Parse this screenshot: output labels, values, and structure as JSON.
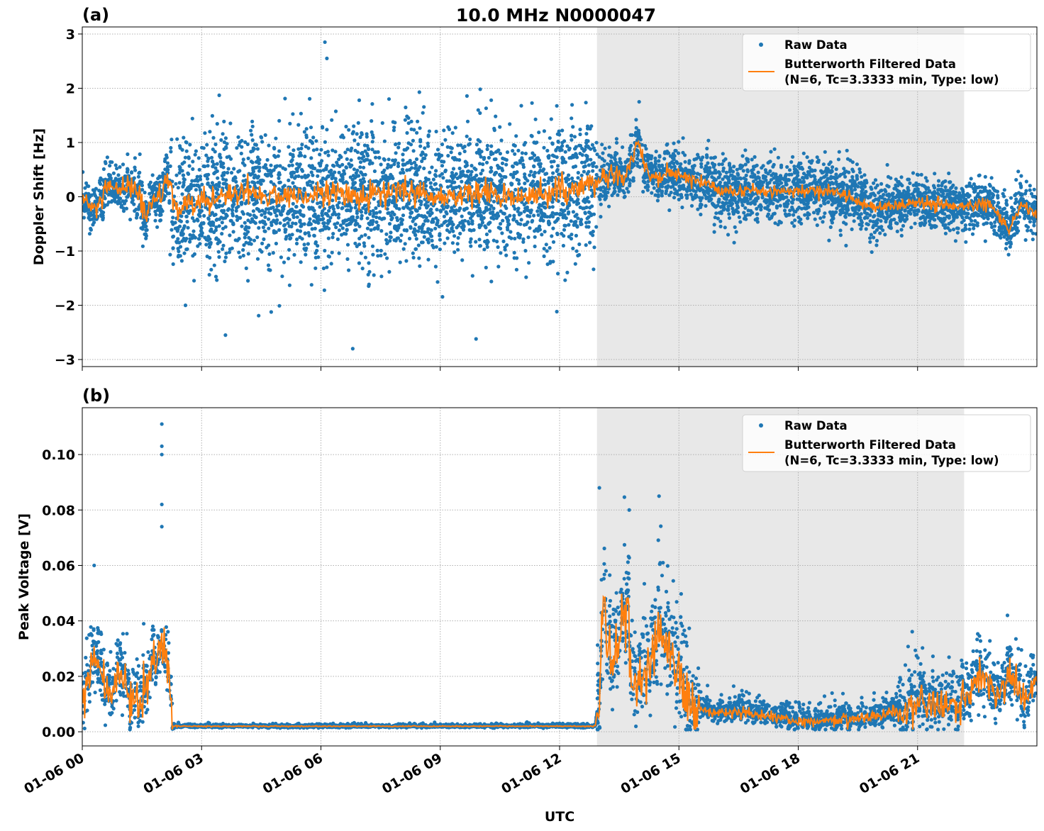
{
  "chart_data": {
    "type": "scatter",
    "title": "10.0 MHz N0000047",
    "xlabel": "UTC",
    "xlim_hours": [
      0,
      24
    ],
    "x_tick_hours": [
      0,
      3,
      6,
      9,
      12,
      15,
      18,
      21
    ],
    "x_tick_labels": [
      "01-06 00",
      "01-06 03",
      "01-06 06",
      "01-06 09",
      "01-06 12",
      "01-06 15",
      "01-06 18",
      "01-06 21"
    ],
    "shaded_region_hours": [
      12.94,
      22.17
    ],
    "colors": {
      "raw": "#1f77b4",
      "filtered": "#ff7f0e",
      "shade": "#e8e8e8",
      "grid": "#b0b0b0"
    },
    "grid": true,
    "legend_placement": "top-right",
    "panels": [
      {
        "label": "(a)",
        "ylabel": "Doppler Shift [Hz]",
        "ylim": [
          -3.13,
          3.13
        ],
        "y_ticks": [
          -3,
          -2,
          -1,
          0,
          1,
          2,
          3
        ],
        "y_tick_labels": [
          "−3",
          "−2",
          "−1",
          "0",
          "1",
          "2",
          "3"
        ],
        "legend": [
          "Raw Data",
          "Butterworth Filtered Data",
          "(N=6, Tc=3.3333 min, Type: low)"
        ],
        "filtered": [
          [
            0,
            0
          ],
          [
            0.3,
            -0.3
          ],
          [
            0.6,
            0.1
          ],
          [
            1,
            0.15
          ],
          [
            1.3,
            0.2
          ],
          [
            1.6,
            -0.3
          ],
          [
            2,
            0.1
          ],
          [
            2.2,
            0.2
          ],
          [
            2.4,
            -0.3
          ],
          [
            3,
            -0.1
          ],
          [
            4,
            0.1
          ],
          [
            5,
            0
          ],
          [
            6,
            0.05
          ],
          [
            7,
            0
          ],
          [
            8,
            0.1
          ],
          [
            9,
            0
          ],
          [
            10,
            0.05
          ],
          [
            11,
            0
          ],
          [
            12,
            0.1
          ],
          [
            12.9,
            0.2
          ],
          [
            13.3,
            0.45
          ],
          [
            13.7,
            0.4
          ],
          [
            14,
            1.1
          ],
          [
            14.2,
            0.4
          ],
          [
            15,
            0.4
          ],
          [
            15.5,
            0.3
          ],
          [
            16,
            0.1
          ],
          [
            17,
            0.1
          ],
          [
            18,
            0.1
          ],
          [
            19,
            0.1
          ],
          [
            19.5,
            -0.1
          ],
          [
            20,
            -0.2
          ],
          [
            21,
            -0.1
          ],
          [
            22,
            -0.2
          ],
          [
            22.8,
            -0.1
          ],
          [
            23.3,
            -0.6
          ],
          [
            23.6,
            -0.2
          ],
          [
            24,
            -0.3
          ]
        ],
        "raw_spread": [
          {
            "from": 0,
            "to": 2.2,
            "std": 0.2,
            "wiggle": 0.12
          },
          {
            "from": 2.2,
            "to": 12.95,
            "std": 0.62,
            "wiggle": 0.12
          },
          {
            "from": 12.95,
            "to": 14.3,
            "std": 0.22,
            "wiggle": 0.1
          },
          {
            "from": 14.3,
            "to": 15.5,
            "std": 0.22,
            "wiggle": 0.08
          },
          {
            "from": 15.5,
            "to": 20,
            "std": 0.3,
            "wiggle": 0.06
          },
          {
            "from": 20,
            "to": 24,
            "std": 0.22,
            "wiggle": 0.06
          }
        ],
        "outliers": [
          [
            6.1,
            2.85
          ],
          [
            6.15,
            2.55
          ],
          [
            9.9,
            -2.62
          ],
          [
            6.8,
            -2.8
          ],
          [
            3.6,
            -2.55
          ],
          [
            14,
            1.75
          ]
        ]
      },
      {
        "label": "(b)",
        "ylabel": "Peak Voltage [V]",
        "ylim": [
          -0.0051,
          0.1169
        ],
        "y_ticks": [
          0,
          0.02,
          0.04,
          0.06,
          0.08,
          0.1
        ],
        "y_tick_labels": [
          "0.00",
          "0.02",
          "0.04",
          "0.06",
          "0.08",
          "0.10"
        ],
        "legend": [
          "Raw Data",
          "Butterworth Filtered Data",
          "(N=6, Tc=3.3333 min, Type: low)"
        ],
        "filtered": [
          [
            0,
            0.01
          ],
          [
            0.3,
            0.028
          ],
          [
            0.6,
            0.015
          ],
          [
            0.9,
            0.02
          ],
          [
            1.2,
            0.01
          ],
          [
            1.6,
            0.018
          ],
          [
            2,
            0.033
          ],
          [
            2.2,
            0.02
          ],
          [
            2.26,
            0.002
          ],
          [
            12.9,
            0.002
          ],
          [
            13.0,
            0.015
          ],
          [
            13.1,
            0.05
          ],
          [
            13.3,
            0.02
          ],
          [
            13.7,
            0.05
          ],
          [
            13.8,
            0.015
          ],
          [
            14.2,
            0.02
          ],
          [
            14.5,
            0.04
          ],
          [
            15,
            0.015
          ],
          [
            15.5,
            0.008
          ],
          [
            16,
            0.007
          ],
          [
            17,
            0.006
          ],
          [
            18,
            0.004
          ],
          [
            19,
            0.004
          ],
          [
            20,
            0.006
          ],
          [
            21,
            0.009
          ],
          [
            22,
            0.01
          ],
          [
            22.6,
            0.02
          ],
          [
            23,
            0.012
          ],
          [
            23.3,
            0.022
          ],
          [
            23.7,
            0.012
          ],
          [
            24,
            0.018
          ]
        ],
        "raw_spread": [
          {
            "from": 0,
            "to": 2.26,
            "std": 0.007,
            "wiggle": 0.004
          },
          {
            "from": 2.26,
            "to": 12.95,
            "std": 0.0004,
            "wiggle": 0.0001
          },
          {
            "from": 12.95,
            "to": 15.5,
            "std": 0.012,
            "wiggle": 0.006
          },
          {
            "from": 15.5,
            "to": 20.5,
            "std": 0.003,
            "wiggle": 0.001
          },
          {
            "from": 20.5,
            "to": 24,
            "std": 0.007,
            "wiggle": 0.003
          }
        ],
        "outliers": [
          [
            2.0,
            0.111
          ],
          [
            2.0,
            0.103
          ],
          [
            2.0,
            0.1
          ],
          [
            2.0,
            0.082
          ],
          [
            2.0,
            0.074
          ],
          [
            13.0,
            0.088
          ],
          [
            13.75,
            0.08
          ],
          [
            14.5,
            0.085
          ],
          [
            0.3,
            0.06
          ]
        ]
      }
    ]
  }
}
